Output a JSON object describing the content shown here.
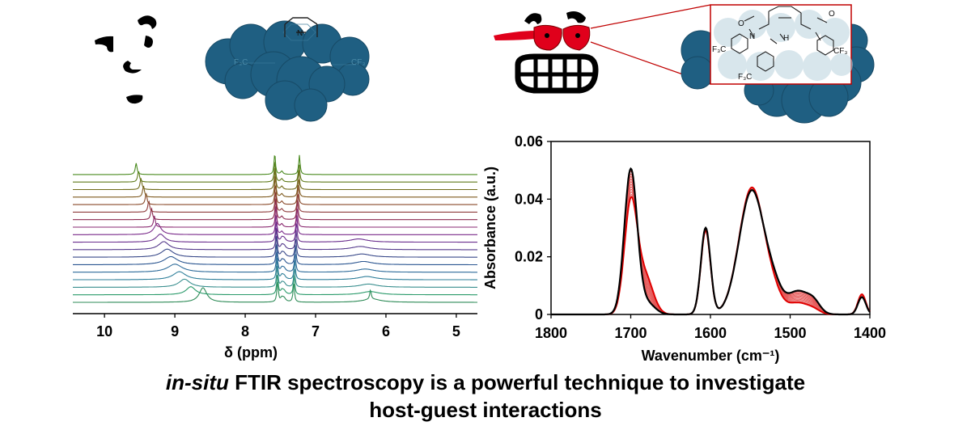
{
  "caption": {
    "line1_italic": "in-situ",
    "line1_rest": " FTIR spectroscopy is a powerful technique to investigate",
    "line2": "host-guest interactions"
  },
  "molecule_labels": {
    "cf3_a": "F₃C",
    "cf3_b": "CF₃",
    "cf3_c": "F₃C",
    "n_label": "N",
    "h_label": "H",
    "o_label": "O"
  },
  "colors": {
    "cloud": "#1f5f82",
    "cloud_light": "#a9c9d8",
    "glasses": "#e0001b",
    "inset_border": "#c00000",
    "ir_dark": "#000000",
    "ir_red": "#e00000"
  },
  "icons": [
    "confused-face-icon",
    "face-with-red-glasses-icon",
    "mof-cloud-icon"
  ],
  "chart_data": [
    {
      "type": "line",
      "title": "",
      "xlabel": "δ (ppm)",
      "ylabel": "",
      "x_ticks": [
        "10",
        "9",
        "8",
        "7",
        "6",
        "5"
      ],
      "x_tick_values": [
        10,
        9,
        8,
        7,
        6,
        5
      ],
      "xlim": [
        10.45,
        4.7
      ],
      "reversed_x": true,
      "stacked_traces": 18,
      "series_colors": [
        "#2e8b57",
        "#2a9a6a",
        "#3a8f8f",
        "#2f7f9a",
        "#2d6b9a",
        "#2a5590",
        "#3a4a8a",
        "#553a8c",
        "#6b2f8e",
        "#7a2a8a",
        "#8a2a70",
        "#8c2a50",
        "#8e3a3a",
        "#8a4a2a",
        "#7f5a1f",
        "#6f6a1a",
        "#5f7a1a",
        "#4a8a1f"
      ],
      "peak_notes": "Stacked 1H NMR spectra; NH peak shifts from ~8.6 (bottom) to ~9.55 ppm (top); aromatic doublets near 7.6 and 7.25 ppm"
    },
    {
      "type": "line",
      "title": "",
      "xlabel": "Wavenumber (cm⁻¹)",
      "ylabel": "Absorbance (a.u.)",
      "x_ticks": [
        "1800",
        "1700",
        "1600",
        "1500",
        "1400"
      ],
      "x_tick_values": [
        1800,
        1700,
        1600,
        1500,
        1400
      ],
      "y_ticks": [
        "0",
        "0.02",
        "0.04",
        "0.06"
      ],
      "y_tick_values": [
        0,
        0.02,
        0.04,
        0.06
      ],
      "xlim": [
        1800,
        1400
      ],
      "ylim": [
        0,
        0.06
      ],
      "reversed_x": true,
      "series": [
        {
          "name": "",
          "color": "#000000",
          "peaks": [
            [
              1700,
              0.05,
              8
            ],
            [
              1680,
              0.004,
              10
            ],
            [
              1606,
              0.03,
              6
            ],
            [
              1548,
              0.043,
              16
            ],
            [
              1520,
              0.006,
              10
            ],
            [
              1490,
              0.008,
              14
            ],
            [
              1470,
              0.003,
              8
            ],
            [
              1410,
              0.006,
              5
            ]
          ]
        },
        {
          "name": "",
          "color": "#e00000",
          "peaks": [
            [
              1700,
              0.038,
              8
            ],
            [
              1682,
              0.013,
              10
            ],
            [
              1606,
              0.029,
              6
            ],
            [
              1548,
              0.044,
              16
            ],
            [
              1520,
              0.004,
              10
            ],
            [
              1490,
              0.004,
              14
            ],
            [
              1470,
              0.001,
              8
            ],
            [
              1410,
              0.007,
              5
            ]
          ]
        }
      ],
      "intermediate_traces": 10
    }
  ]
}
